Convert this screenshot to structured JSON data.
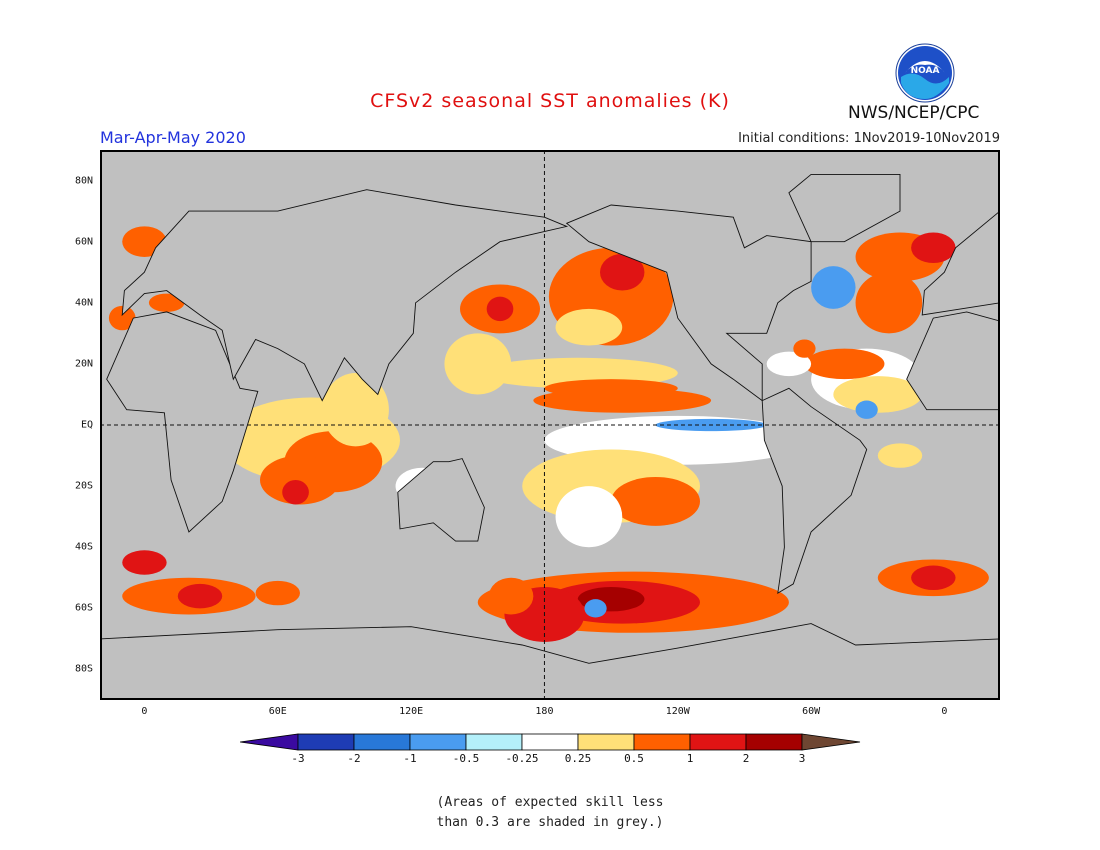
{
  "header": {
    "title": "CFSv2 seasonal SST anomalies (K)",
    "period": "Mar-Apr-May 2020",
    "initial_conditions": "Initial conditions: 1Nov2019-10Nov2019",
    "agency": "NWS/NCEP/CPC",
    "logo_text": "NOAA"
  },
  "map": {
    "lat_ticks": [
      {
        "label": "80N",
        "lat": 80
      },
      {
        "label": "60N",
        "lat": 60
      },
      {
        "label": "40N",
        "lat": 40
      },
      {
        "label": "20N",
        "lat": 20
      },
      {
        "label": "EQ",
        "lat": 0
      },
      {
        "label": "20S",
        "lat": -20
      },
      {
        "label": "40S",
        "lat": -40
      },
      {
        "label": "60S",
        "lat": -60
      },
      {
        "label": "80S",
        "lat": -80
      }
    ],
    "lon_ticks": [
      {
        "label": "0",
        "lon": 0
      },
      {
        "label": "60E",
        "lon": 60
      },
      {
        "label": "120E",
        "lon": 120
      },
      {
        "label": "180",
        "lon": 180
      },
      {
        "label": "120W",
        "lon": 240
      },
      {
        "label": "60W",
        "lon": 300
      },
      {
        "label": "0",
        "lon": 360
      }
    ],
    "lon_range": [
      -20,
      385
    ],
    "lat_range": [
      -90,
      90
    ],
    "grey_color": "#c0c0c0"
  },
  "colorbar": {
    "labels": [
      "-3",
      "-2",
      "-1",
      "-0.5",
      "-0.25",
      "0.25",
      "0.5",
      "1",
      "2",
      "3"
    ],
    "colors": [
      "#1e3cb4",
      "#2878d8",
      "#4a9cf0",
      "#b4f0fa",
      "#ffffff",
      "#ffe078",
      "#ff6000",
      "#e01414",
      "#a50000"
    ],
    "under_color": "#3a0aa0",
    "over_color": "#6e4632"
  },
  "note": {
    "line1": "(Areas of expected skill less",
    "line2": "than 0.3 are shaded in grey.)"
  }
}
